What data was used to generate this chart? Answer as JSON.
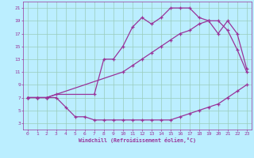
{
  "xlabel": "Windchill (Refroidissement éolien,°C)",
  "bg_color": "#bbeeff",
  "grid_color": "#99ccbb",
  "line_color": "#993399",
  "xlim": [
    -0.5,
    23.5
  ],
  "ylim": [
    2,
    22
  ],
  "xticks": [
    0,
    1,
    2,
    3,
    4,
    5,
    6,
    7,
    8,
    9,
    10,
    11,
    12,
    13,
    14,
    15,
    16,
    17,
    18,
    19,
    20,
    21,
    22,
    23
  ],
  "yticks": [
    3,
    5,
    7,
    9,
    11,
    13,
    15,
    17,
    19,
    21
  ],
  "line1_x": [
    0,
    1,
    2,
    3,
    4,
    5,
    6,
    7,
    8,
    9,
    10,
    11,
    12,
    13,
    14,
    15,
    16,
    17,
    18,
    19,
    20,
    21,
    22,
    23
  ],
  "line1_y": [
    7,
    7,
    7,
    7,
    5.5,
    4,
    4,
    3.5,
    3.5,
    3.5,
    3.5,
    3.5,
    3.5,
    3.5,
    3.5,
    3.5,
    4,
    4.5,
    5,
    5.5,
    6,
    7,
    8,
    9
  ],
  "line2_x": [
    0,
    1,
    2,
    3,
    7,
    8,
    9,
    10,
    11,
    12,
    13,
    14,
    15,
    16,
    17,
    18,
    19,
    20,
    21,
    22,
    23
  ],
  "line2_y": [
    7,
    7,
    7,
    7.5,
    7.5,
    13,
    13,
    15,
    18,
    19.5,
    18.5,
    19.5,
    21,
    21,
    21,
    19.5,
    19,
    17,
    19,
    17,
    11.5
  ],
  "line3_x": [
    0,
    1,
    2,
    10,
    11,
    12,
    13,
    14,
    15,
    16,
    17,
    18,
    19,
    20,
    21,
    22,
    23
  ],
  "line3_y": [
    7,
    7,
    7,
    11,
    12,
    13,
    14,
    15,
    16,
    17,
    17.5,
    18.5,
    19,
    19,
    17.5,
    14.5,
    11
  ]
}
